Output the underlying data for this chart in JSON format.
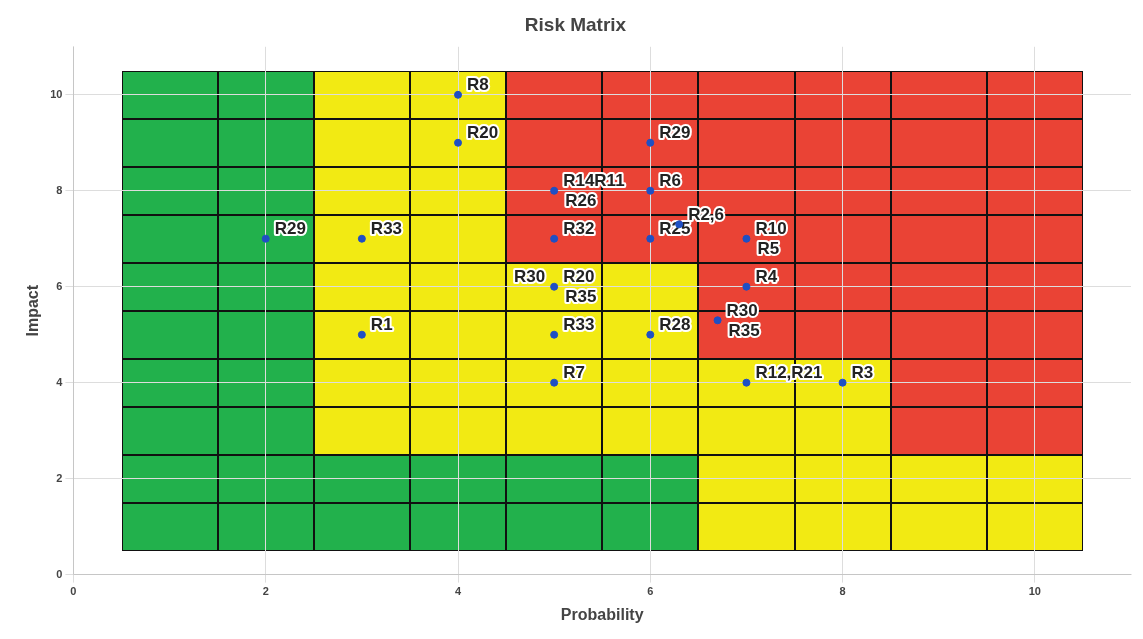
{
  "chart_data": {
    "type": "scatter",
    "title": "Risk Matrix",
    "xlabel": "Probability",
    "ylabel": "Impact",
    "xlim": [
      0,
      11
    ],
    "ylim": [
      0,
      11
    ],
    "xticks": [
      0,
      2,
      4,
      6,
      8,
      10
    ],
    "yticks": [
      0,
      2,
      4,
      6,
      8,
      10
    ],
    "grid": true,
    "legend": false,
    "marker": "circle",
    "series": [
      {
        "color": "#1f4fc4",
        "x": [
          4,
          4,
          6,
          5,
          6,
          2,
          3,
          5,
          6,
          6.3,
          7,
          5,
          7,
          6.7,
          3,
          5,
          6,
          5,
          7,
          8
        ],
        "values": [
          10,
          9,
          9,
          8,
          8,
          7,
          7,
          7,
          7,
          7.3,
          7,
          6,
          6,
          5.3,
          5,
          5,
          5,
          4,
          4,
          4
        ]
      }
    ],
    "annotations": [
      {
        "text": "R8",
        "x": 4,
        "y": 10
      },
      {
        "text": "R20",
        "x": 4,
        "y": 9
      },
      {
        "text": "R29",
        "x": 6,
        "y": 9
      },
      {
        "text": "R14R11",
        "x": 5,
        "y": 8
      },
      {
        "text": "R26",
        "x": 5,
        "y": 8
      },
      {
        "text": "R6",
        "x": 6,
        "y": 8
      },
      {
        "text": "R29",
        "x": 2,
        "y": 7
      },
      {
        "text": "R33",
        "x": 3,
        "y": 7
      },
      {
        "text": "R32",
        "x": 5,
        "y": 7
      },
      {
        "text": "R25",
        "x": 6,
        "y": 7
      },
      {
        "text": "R2,6",
        "x": 6.3,
        "y": 7.3
      },
      {
        "text": "R10",
        "x": 7,
        "y": 7
      },
      {
        "text": "R5",
        "x": 7,
        "y": 7
      },
      {
        "text": "R20",
        "x": 5,
        "y": 6
      },
      {
        "text": "R35",
        "x": 5,
        "y": 6
      },
      {
        "text": "R30",
        "x": 5,
        "y": 6
      },
      {
        "text": "R4",
        "x": 7,
        "y": 6
      },
      {
        "text": "R30",
        "x": 6.7,
        "y": 5.3
      },
      {
        "text": "R35",
        "x": 6.7,
        "y": 5.3
      },
      {
        "text": "R1",
        "x": 3,
        "y": 5
      },
      {
        "text": "R33",
        "x": 5,
        "y": 5
      },
      {
        "text": "R28",
        "x": 6,
        "y": 5
      },
      {
        "text": "R7",
        "x": 5,
        "y": 4
      },
      {
        "text": "R12,R21",
        "x": 7,
        "y": 4
      },
      {
        "text": "R3",
        "x": 8,
        "y": 4
      }
    ]
  }
}
